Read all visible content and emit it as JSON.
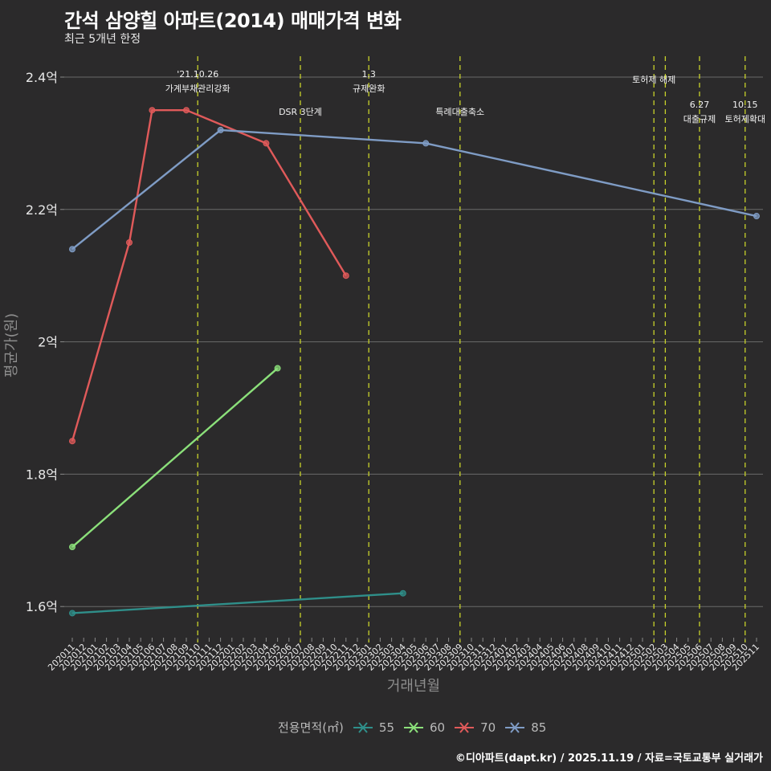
{
  "header": {
    "title": "간석 삼양힐 아파트(2014) 매매가격 변화",
    "subtitle": "최근 5개년 한정"
  },
  "caption": "©디아파트(dapt.kr) / 2025.11.19 / 자료=국토교통부 실거래가",
  "legend": {
    "title": "전용면적(㎡)",
    "items": [
      {
        "label": "55",
        "color": "#2f8f8a"
      },
      {
        "label": "60",
        "color": "#8be07a"
      },
      {
        "label": "70",
        "color": "#e05a5a"
      },
      {
        "label": "85",
        "color": "#7f9cc5"
      }
    ]
  },
  "chart_data": {
    "type": "line",
    "title": "간석 삼양힐 아파트(2014) 매매가격 변화",
    "subtitle": "최근 5개년 한정",
    "xlabel": "거래년월",
    "ylabel": "평균가(원)",
    "ylim": [
      1.56,
      2.44
    ],
    "yticks": [
      {
        "value": 1.6,
        "label": "1.6억"
      },
      {
        "value": 1.8,
        "label": "1.8억"
      },
      {
        "value": 2.0,
        "label": "2억"
      },
      {
        "value": 2.2,
        "label": "2.2억"
      },
      {
        "value": 2.4,
        "label": "2.4억"
      }
    ],
    "x_categories": [
      "202011",
      "202012",
      "202101",
      "202102",
      "202103",
      "202104",
      "202105",
      "202106",
      "202107",
      "202108",
      "202109",
      "202110",
      "202111",
      "202112",
      "202201",
      "202202",
      "202203",
      "202204",
      "202205",
      "202206",
      "202207",
      "202208",
      "202209",
      "202210",
      "202211",
      "202212",
      "202301",
      "202302",
      "202303",
      "202304",
      "202305",
      "202306",
      "202307",
      "202308",
      "202309",
      "202310",
      "202311",
      "202312",
      "202401",
      "202402",
      "202403",
      "202404",
      "202405",
      "202406",
      "202407",
      "202408",
      "202409",
      "202410",
      "202411",
      "202412",
      "202501",
      "202502",
      "202503",
      "202504",
      "202505",
      "202506",
      "202507",
      "202508",
      "202509",
      "202510",
      "202511"
    ],
    "grid": true,
    "legend_position": "bottom",
    "legend_title": "전용면적(㎡)",
    "series": [
      {
        "name": "55",
        "color": "#2f8f8a",
        "points": [
          {
            "x": "202011",
            "y": 1.59
          },
          {
            "x": "202304",
            "y": 1.62
          }
        ]
      },
      {
        "name": "60",
        "color": "#8be07a",
        "points": [
          {
            "x": "202011",
            "y": 1.69
          },
          {
            "x": "202205",
            "y": 1.96
          }
        ]
      },
      {
        "name": "70",
        "color": "#e05a5a",
        "points": [
          {
            "x": "202011",
            "y": 1.85
          },
          {
            "x": "202104",
            "y": 2.15
          },
          {
            "x": "202106",
            "y": 2.35
          },
          {
            "x": "202109",
            "y": 2.35
          },
          {
            "x": "202204",
            "y": 2.3
          },
          {
            "x": "202211",
            "y": 2.1
          }
        ]
      },
      {
        "name": "85",
        "color": "#7f9cc5",
        "points": [
          {
            "x": "202011",
            "y": 2.14
          },
          {
            "x": "202112",
            "y": 2.32
          },
          {
            "x": "202306",
            "y": 2.3
          },
          {
            "x": "202511",
            "y": 2.19
          }
        ]
      }
    ],
    "annotations": [
      {
        "x": "202110",
        "lines": [
          "'21.10.26",
          "가계부채관리강화"
        ],
        "row": 0
      },
      {
        "x": "202207",
        "lines": [
          "DSR 3단계"
        ],
        "row": 1
      },
      {
        "x": "202301",
        "lines": [
          "1.3",
          "규제완화"
        ],
        "row": 0
      },
      {
        "x": "202309",
        "lines": [
          "특례대출축소"
        ],
        "row": 1
      },
      {
        "x": "202502",
        "lines": [
          "토허제 해제"
        ],
        "row": 0
      },
      {
        "x": "202503",
        "lines": [],
        "row": 0
      },
      {
        "x": "202506",
        "lines": [
          "6.27",
          "대출규제"
        ],
        "row": 1
      },
      {
        "x": "202510",
        "lines": [
          "10.15",
          "토허제확대"
        ],
        "row": 1
      }
    ]
  }
}
